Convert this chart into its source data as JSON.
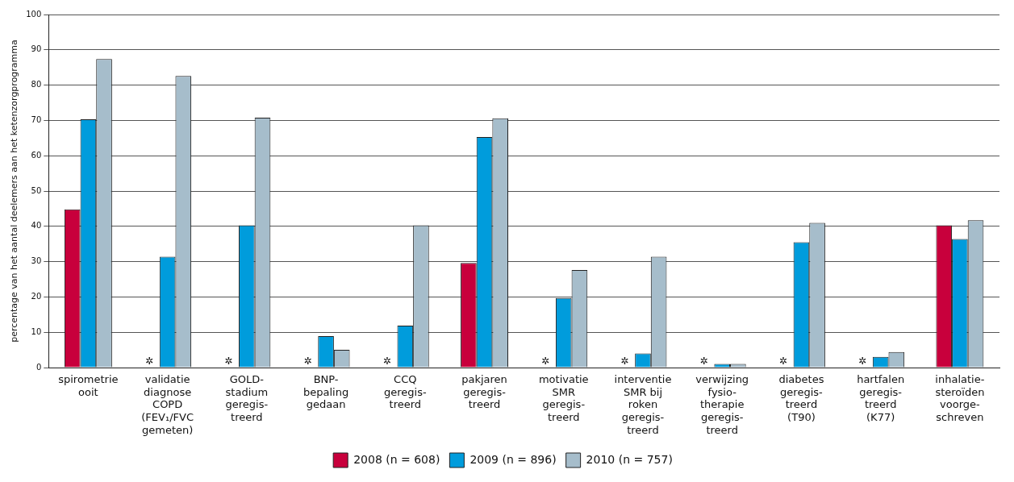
{
  "chart_data": {
    "type": "bar",
    "ylabel": "percentage van het aantal deelemers aan het ketenzorgprogramma",
    "categories": [
      "spirometrie\nooit",
      "validatie\ndiagnose\nCOPD\n(FEV₁/FVC\ngemeten)",
      "GOLD-\nstadium\ngeregis-\ntreerd",
      "BNP-\nbepaling\ngedaan",
      "CCQ\ngeregis-\ntreerd",
      "pakjaren\ngeregis-\ntreerd",
      "motivatie\nSMR\ngeregis-\ntreerd",
      "interventie\nSMR bij\nroken\ngeregis-\ntreerd",
      "verwijzing\nfysio-\ntherapie\ngeregis-\ntreerd",
      "diabetes\ngeregis-\ntreerd\n(T90)",
      "hartfalen\ngeregis-\ntreerd\n(K77)",
      "inhalatie-\nsteroïden\nvoorge-\nschreven"
    ],
    "series": [
      {
        "name": "2008 (n = 608)",
        "color": "#c8003c",
        "values": [
          44.8,
          null,
          null,
          null,
          null,
          29.6,
          null,
          null,
          null,
          null,
          null,
          40.3
        ]
      },
      {
        "name": "2009 (n = 896)",
        "color": "#009cdc",
        "values": [
          70.3,
          31.4,
          40.3,
          8.9,
          11.9,
          65.3,
          19.7,
          4.0,
          1.0,
          35.5,
          3.0,
          36.4
        ]
      },
      {
        "name": "2010 (n = 757)",
        "color": "#a6bdcb",
        "values": [
          87.4,
          82.6,
          70.8,
          5.0,
          40.3,
          70.6,
          27.6,
          31.4,
          1.0,
          41.0,
          4.4,
          41.7
        ]
      }
    ],
    "annotations": [
      {
        "text": "✲",
        "x": "validatie\ndiagnose\nCOPD\n(FEV₁/FVC\ngemeten)",
        "y": 0
      },
      {
        "text": "✲",
        "x": "GOLD-\nstadium\ngeregis-\ntreerd",
        "y": 0
      },
      {
        "text": "✲",
        "x": "BNP-\nbepaling\ngedaan",
        "y": 0
      },
      {
        "text": "✲",
        "x": "CCQ\ngeregis-\ntreerd",
        "y": 0
      },
      {
        "text": "✲",
        "x": "motivatie\nSMR\ngeregis-\ntreerd",
        "y": 0
      },
      {
        "text": "✲",
        "x": "interventie\nSMR bij\nroken\ngeregis-\ntreerd",
        "y": 0
      },
      {
        "text": "✲",
        "x": "verwijzing\nfysio-\ntherapie\ngeregis-\ntreerd",
        "y": 0
      },
      {
        "text": "✲",
        "x": "diabetes\ngeregis-\ntreerd\n(T90)",
        "y": 0
      },
      {
        "text": "✲",
        "x": "hartfalen\ngeregis-\ntreerd\n(K77)",
        "y": 0
      }
    ],
    "ylim": [
      0,
      100
    ],
    "yticks": [
      0,
      10,
      20,
      30,
      40,
      50,
      60,
      70,
      80,
      90,
      100
    ],
    "grid": "y",
    "legend": "bottom"
  }
}
